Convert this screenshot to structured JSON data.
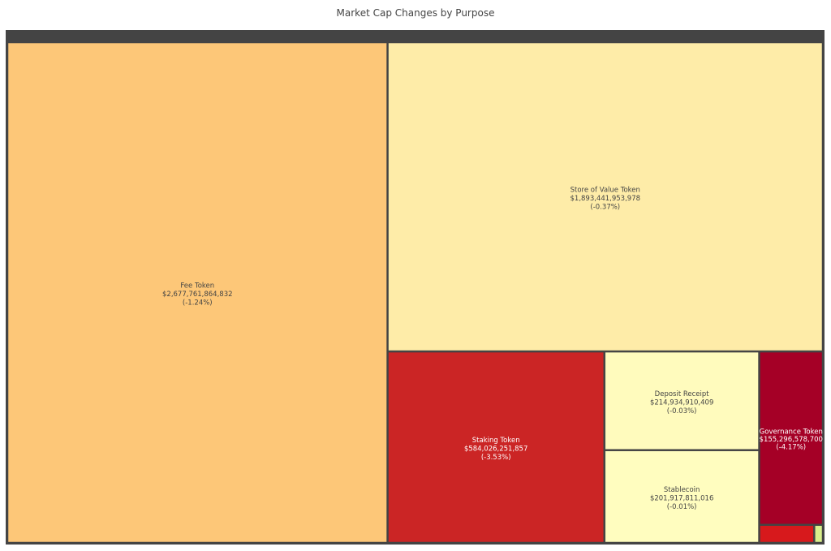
{
  "chart_data": {
    "type": "treemap",
    "title": "Market Cap Changes by Purpose",
    "root": {
      "label": "",
      "color": "#444444"
    },
    "items": [
      {
        "label": "Fee Token",
        "value_label": "$2,677,761,864,832",
        "change_label": "(-1.24%)",
        "value": 2677761864832,
        "change_pct": -1.24,
        "color": "#fdc778"
      },
      {
        "label": "Store of Value Token",
        "value_label": "$1,893,441,953,978",
        "change_label": "(-0.37%)",
        "value": 1893441953978,
        "change_pct": -0.37,
        "color": "#feeca8"
      },
      {
        "label": "Staking Token",
        "value_label": "$584,026,251,857",
        "change_label": "(-3.53%)",
        "value": 584026251857,
        "change_pct": -3.53,
        "color": "#cb2525"
      },
      {
        "label": "Deposit Receipt",
        "value_label": "$214,934,910,409",
        "change_label": "(-0.03%)",
        "value": 214934910409,
        "change_pct": -0.03,
        "color": "#fffbbd"
      },
      {
        "label": "Stablecoin",
        "value_label": "$201,917,811,016",
        "change_label": "(-0.01%)",
        "value": 201917811016,
        "change_pct": -0.01,
        "color": "#fffdbf"
      },
      {
        "label": "Governance Token",
        "value_label": "$155,296,578,700",
        "change_label": "(-4.17%)",
        "value": 155296578700,
        "change_pct": -4.17,
        "color": "#a50026"
      },
      {
        "label": "",
        "value_label": "",
        "change_label": "",
        "value": 14000000000,
        "color": "#d7191c"
      },
      {
        "label": "",
        "value_label": "",
        "change_label": "",
        "value": 2200000000,
        "color": "#d9ef8b"
      }
    ]
  }
}
